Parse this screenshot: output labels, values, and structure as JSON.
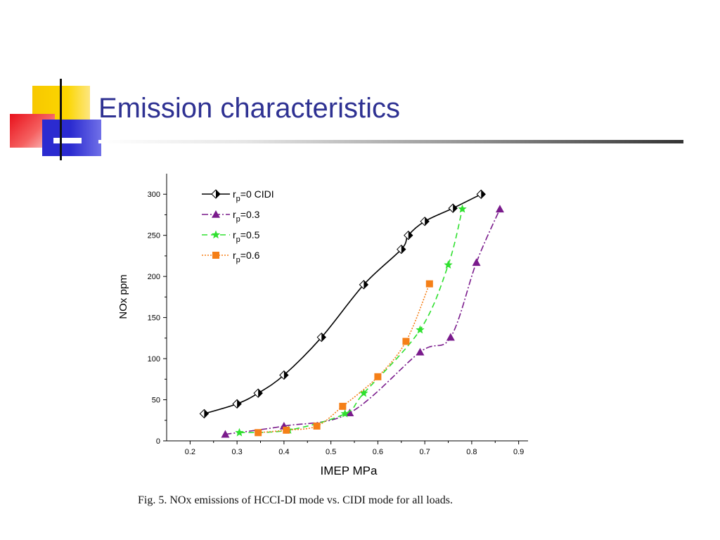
{
  "slide": {
    "title": "Emission characteristics",
    "caption": "Fig. 5. NOx emissions of HCCI-DI mode vs. CIDI mode for all loads.",
    "colors": {
      "title": "#2e3192",
      "accent_yellow": "#f7c800",
      "accent_red": "#e8101a",
      "accent_blue": "#2b2bd0"
    }
  },
  "chart_data": {
    "type": "line",
    "title": "",
    "xlabel": "IMEP  MPa",
    "ylabel": "NOx  ppm",
    "xlim": [
      0.15,
      0.92
    ],
    "ylim": [
      0,
      325
    ],
    "xticks": [
      0.2,
      0.3,
      0.4,
      0.5,
      0.6,
      0.7,
      0.8,
      0.9
    ],
    "xtick_labels": [
      "0.2",
      "0.3",
      "0.4",
      "0.5",
      "0.6",
      "0.7",
      "0.8",
      "0.9"
    ],
    "yticks": [
      0,
      50,
      100,
      150,
      200,
      250,
      300
    ],
    "ytick_labels": [
      "0",
      "50",
      "100",
      "150",
      "200",
      "250",
      "300"
    ],
    "grid": false,
    "legend_position": "top-left",
    "series": [
      {
        "name_main": "r",
        "name_sub": "p",
        "name_rest": "=0  CIDI",
        "color": "#000000",
        "dash": "",
        "marker": "diamond-half",
        "x": [
          0.23,
          0.3,
          0.345,
          0.4,
          0.48,
          0.57,
          0.65,
          0.665,
          0.7,
          0.76,
          0.82
        ],
        "y": [
          33,
          45,
          58,
          80,
          126,
          190,
          233,
          250,
          267,
          283,
          300
        ]
      },
      {
        "name_main": "r",
        "name_sub": "p",
        "name_rest": "=0.3",
        "color": "#7a1b8c",
        "dash": "9,3,2,3",
        "marker": "triangle",
        "x": [
          0.275,
          0.4,
          0.54,
          0.69,
          0.755,
          0.81,
          0.86
        ],
        "y": [
          8,
          18,
          34,
          108,
          126,
          217,
          282
        ]
      },
      {
        "name_main": "r",
        "name_sub": "p",
        "name_rest": "=0.5",
        "color": "#2fe02f",
        "dash": "8,5",
        "marker": "star",
        "x": [
          0.305,
          0.41,
          0.53,
          0.57,
          0.69,
          0.75,
          0.78
        ],
        "y": [
          10,
          13,
          33,
          58,
          135,
          214,
          282
        ]
      },
      {
        "name_main": "r",
        "name_sub": "p",
        "name_rest": "=0.6",
        "color": "#f57f17",
        "dash": "2,2",
        "marker": "square",
        "x": [
          0.345,
          0.405,
          0.47,
          0.525,
          0.6,
          0.66,
          0.71
        ],
        "y": [
          10,
          13,
          18,
          42,
          78,
          121,
          191
        ]
      }
    ]
  }
}
